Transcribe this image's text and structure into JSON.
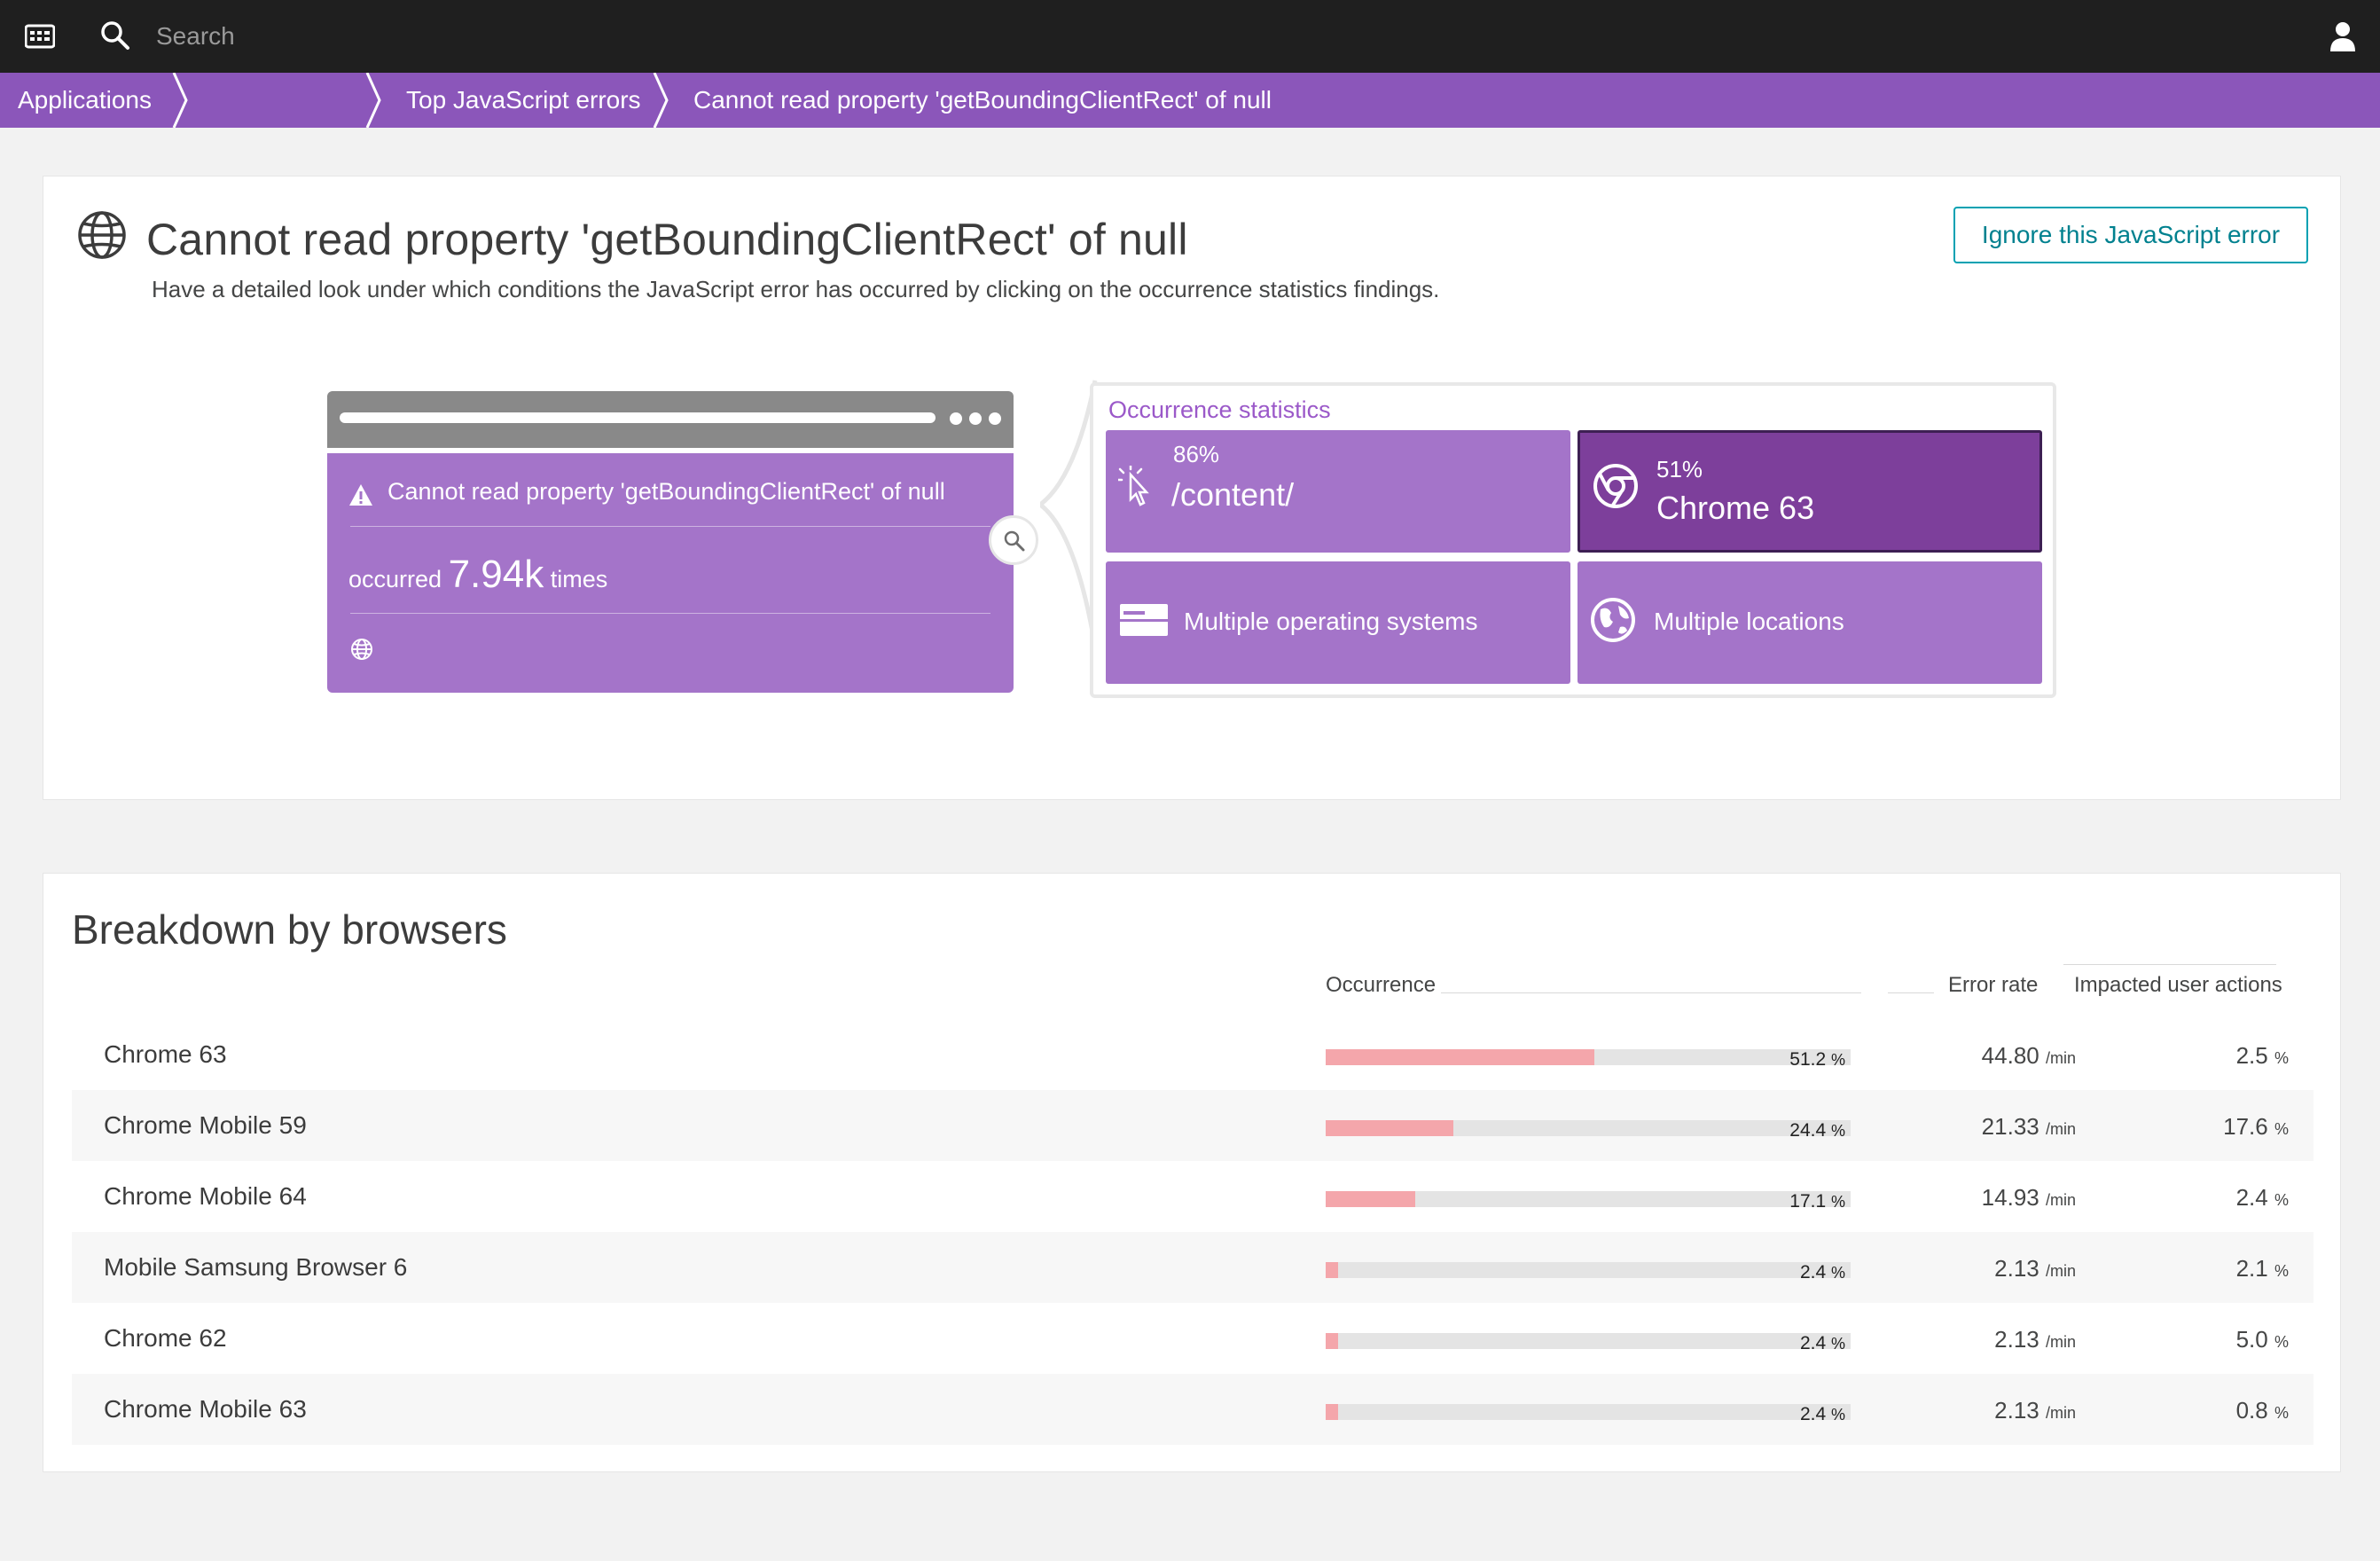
{
  "topbar": {
    "search_placeholder": "Search",
    "menu_icon": "menu-grid-icon",
    "search_icon": "search-icon",
    "user_icon": "user-icon"
  },
  "breadcrumb": {
    "items": [
      "Applications",
      "",
      "Top JavaScript errors",
      "Cannot read property 'getBoundingClientRect' of null"
    ]
  },
  "error_panel": {
    "title": "Cannot read property 'getBoundingClientRect' of null",
    "subtitle": "Have a detailed look under which conditions the JavaScript error has occurred by clicking on the occurrence statistics findings.",
    "ignore_button": "Ignore this JavaScript error",
    "card": {
      "message": "Cannot read property 'getBoundingClientRect' of null",
      "occurred_prefix": "occurred",
      "count": "7.94k",
      "occurred_suffix": "times"
    },
    "stats": {
      "title": "Occurrence statistics",
      "tiles": [
        {
          "pct": "86%",
          "label": "/content/",
          "icon": "cursor-click-icon"
        },
        {
          "pct": "51%",
          "label": "Chrome 63",
          "icon": "chrome-icon",
          "active": true
        },
        {
          "pct": "",
          "label": "Multiple operating systems",
          "icon": "os-icon"
        },
        {
          "pct": "",
          "label": "Multiple locations",
          "icon": "globe-icon"
        }
      ]
    }
  },
  "breakdown": {
    "title": "Breakdown by browsers",
    "columns": {
      "occurrence": "Occurrence",
      "error_rate": "Error rate",
      "impacted": "Impacted user actions"
    },
    "rows": [
      {
        "name": "Chrome 63",
        "occurrence_pct": 51.2,
        "occurrence": "51.2",
        "rate": "44.80",
        "impacted": "2.5"
      },
      {
        "name": "Chrome Mobile 59",
        "occurrence_pct": 24.4,
        "occurrence": "24.4",
        "rate": "21.33",
        "impacted": "17.6"
      },
      {
        "name": "Chrome Mobile 64",
        "occurrence_pct": 17.1,
        "occurrence": "17.1",
        "rate": "14.93",
        "impacted": "2.4"
      },
      {
        "name": "Mobile Samsung Browser 6",
        "occurrence_pct": 2.4,
        "occurrence": "2.4",
        "rate": "2.13",
        "impacted": "2.1"
      },
      {
        "name": "Chrome 62",
        "occurrence_pct": 2.4,
        "occurrence": "2.4",
        "rate": "2.13",
        "impacted": "5.0"
      },
      {
        "name": "Chrome Mobile 63",
        "occurrence_pct": 2.4,
        "occurrence": "2.4",
        "rate": "2.13",
        "impacted": "0.8"
      }
    ],
    "units": {
      "pct": "%",
      "rate": "/min"
    }
  },
  "colors": {
    "topbar": "#1f1f1f",
    "breadcrumb": "#8b56ba",
    "tile": "#a474c9",
    "tile_active": "#7d3f9b",
    "bar_fill": "#f4a6ab",
    "button": "#00a1b2"
  }
}
